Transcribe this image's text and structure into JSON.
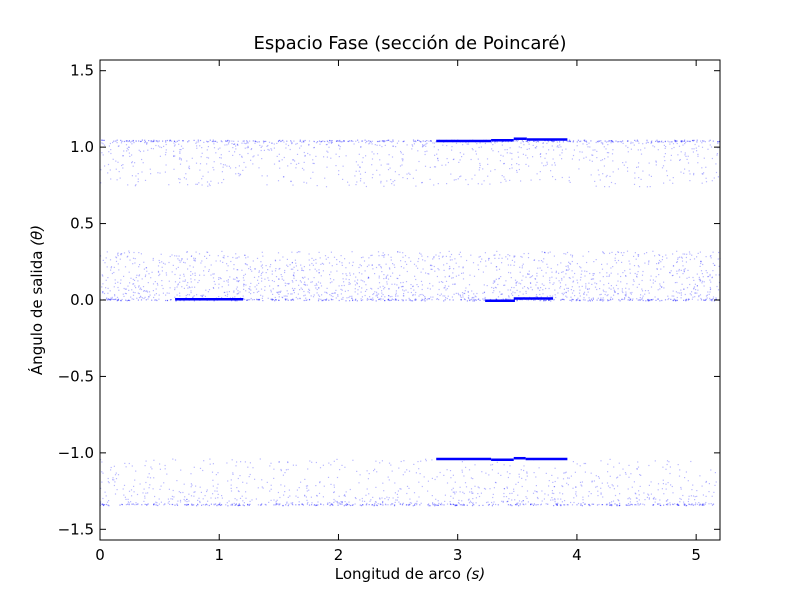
{
  "chart_data": {
    "type": "scatter",
    "title": "Espacio Fase (sección de Poincaré)",
    "xlabel": "Longitud de arco",
    "xlabel_symbol": "(s)",
    "ylabel": "Ángulo de salida",
    "ylabel_symbol": "(θ)",
    "xlim": [
      0,
      5.2
    ],
    "ylim": [
      -1.57,
      1.57
    ],
    "xticks": [
      0,
      1,
      2,
      3,
      4,
      5
    ],
    "xtick_labels": [
      "0",
      "1",
      "2",
      "3",
      "4",
      "5"
    ],
    "yticks": [
      1.5,
      1.0,
      0.5,
      0.0,
      -0.5,
      -1.0,
      -1.5
    ],
    "ytick_labels": [
      "1.5",
      "1.0",
      "0.5",
      "0.0",
      "−0.5",
      "−1.0",
      "−1.5"
    ],
    "grid": false,
    "legend": "none",
    "series_color": "#0000ff",
    "scatter_bands": [
      {
        "name": "",
        "x_range": [
          0,
          5.2
        ],
        "y_range": [
          0.74,
          1.04
        ],
        "density": "sparse-fading-downward"
      },
      {
        "name": "",
        "x_range": [
          0,
          5.2
        ],
        "y_range": [
          0.0,
          0.32
        ],
        "density": "dense"
      },
      {
        "name": "",
        "x_range": [
          0,
          5.2
        ],
        "y_range": [
          -1.34,
          -1.04
        ],
        "density": "sparse-fading-downward"
      }
    ],
    "dense_segments": [
      {
        "x": [
          0.63,
          1.2
        ],
        "y": 0.005
      },
      {
        "x": [
          3.23,
          3.48
        ],
        "y": -0.005
      },
      {
        "x": [
          3.47,
          3.8
        ],
        "y": 0.01
      },
      {
        "x": [
          2.82,
          3.28
        ],
        "y": 1.04
      },
      {
        "x": [
          3.28,
          3.47
        ],
        "y": 1.045
      },
      {
        "x": [
          3.47,
          3.58
        ],
        "y": 1.055
      },
      {
        "x": [
          3.58,
          3.92
        ],
        "y": 1.05
      },
      {
        "x": [
          2.82,
          3.28
        ],
        "y": -1.04
      },
      {
        "x": [
          3.28,
          3.47
        ],
        "y": -1.045
      },
      {
        "x": [
          3.47,
          3.57
        ],
        "y": -1.035
      },
      {
        "x": [
          3.57,
          3.92
        ],
        "y": -1.04
      }
    ]
  }
}
